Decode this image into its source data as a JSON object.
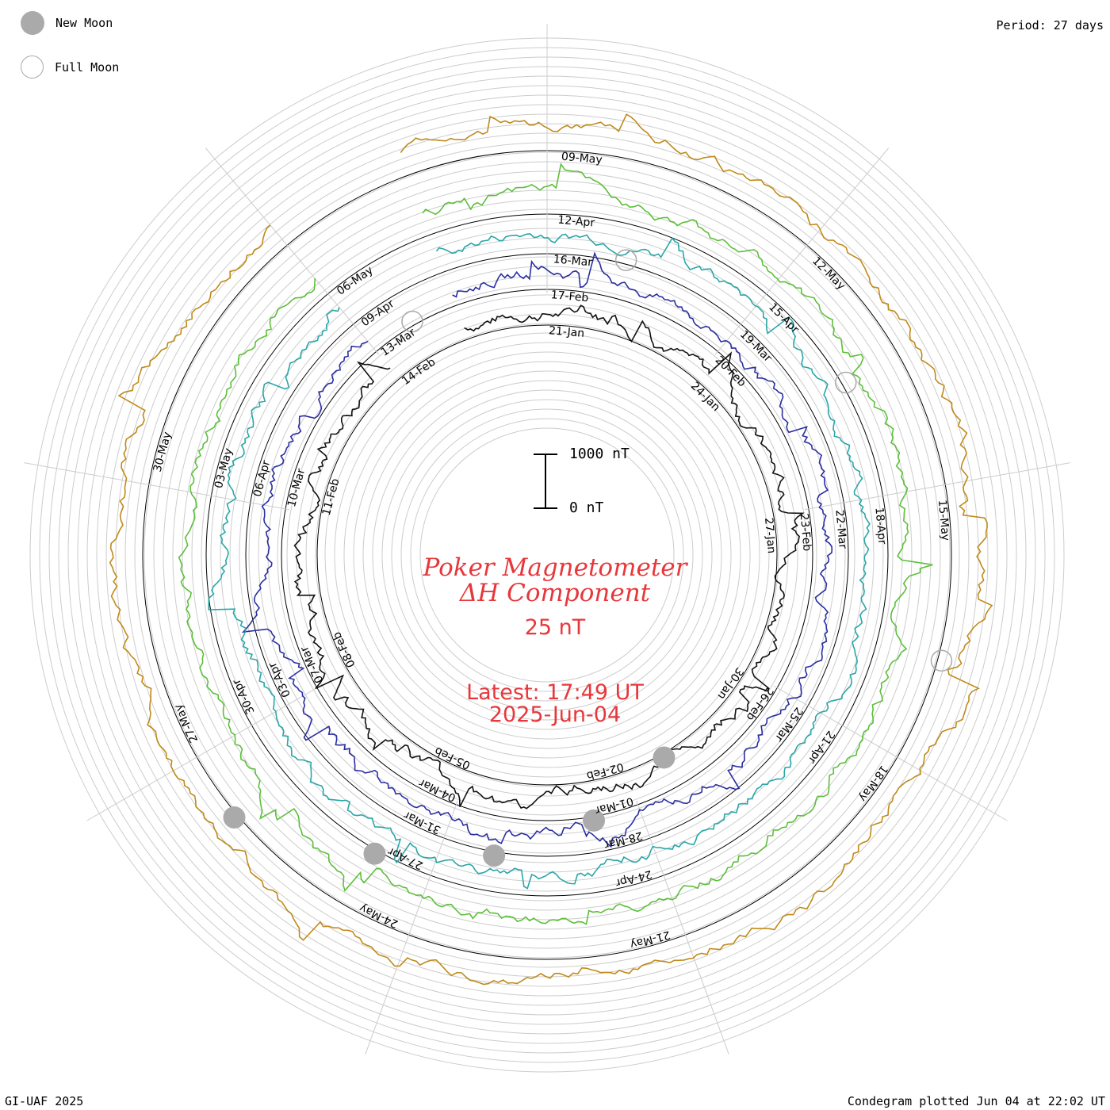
{
  "legend": {
    "new_moon_label": "New Moon",
    "full_moon_label": "Full Moon"
  },
  "header": {
    "period": "Period: 27 days"
  },
  "footer": {
    "credit": "GI-UAF 2025",
    "plotted": "Condegram plotted Jun 04 at 22:02 UT"
  },
  "center": {
    "title_line1": "Poker Magnetometer",
    "title_line2": "ΔH Component",
    "resolution": "25 nT",
    "latest_time": "Latest: 17:49 UT",
    "latest_date": "2025-Jun-04",
    "scale_top": "1000 nT",
    "scale_bottom": "0 nT"
  },
  "colors": {
    "accent": "#e8373b",
    "moon": "#aaaaaa",
    "grid": "#cccccc"
  },
  "chart_data": {
    "type": "line",
    "title": "Poker Magnetometer ΔH Component",
    "units": "nT",
    "period_days": 27,
    "scale_nT": [
      0,
      1000
    ],
    "series": [
      {
        "color": "#111111",
        "date_labels": [
          "21-Jan",
          "24-Jan",
          "27-Jan",
          "30-Jan",
          "02-Feb",
          "05-Feb",
          "08-Feb",
          "11-Feb",
          "14-Feb"
        ]
      },
      {
        "color": "#2a2ea0",
        "date_labels": [
          "17-Feb",
          "20-Feb",
          "23-Feb",
          "26-Feb",
          "01-Mar",
          "04-Mar",
          "07-Mar",
          "10-Mar",
          "13-Mar"
        ]
      },
      {
        "color": "#2aa6a8",
        "date_labels": [
          "16-Mar",
          "19-Mar",
          "22-Mar",
          "25-Mar",
          "28-Mar",
          "31-Mar",
          "03-Apr",
          "06-Apr",
          "09-Apr"
        ]
      },
      {
        "color": "#5cbf3a",
        "date_labels": [
          "12-Apr",
          "15-Apr",
          "18-Apr",
          "21-Apr",
          "24-Apr",
          "27-Apr",
          "30-Apr",
          "03-May",
          "06-May"
        ]
      },
      {
        "color": "#c08a1a",
        "date_labels": [
          "09-May",
          "12-May",
          "15-May",
          "18-May",
          "21-May",
          "24-May",
          "27-May",
          "30-May"
        ]
      }
    ],
    "moon_phases": {
      "new_moon": [
        "29-Jan",
        "28-Feb",
        "29-Mar",
        "27-Apr",
        "27-May"
      ],
      "full_moon": [
        "13-Feb",
        "14-Mar",
        "13-Apr",
        "12-May"
      ]
    }
  }
}
